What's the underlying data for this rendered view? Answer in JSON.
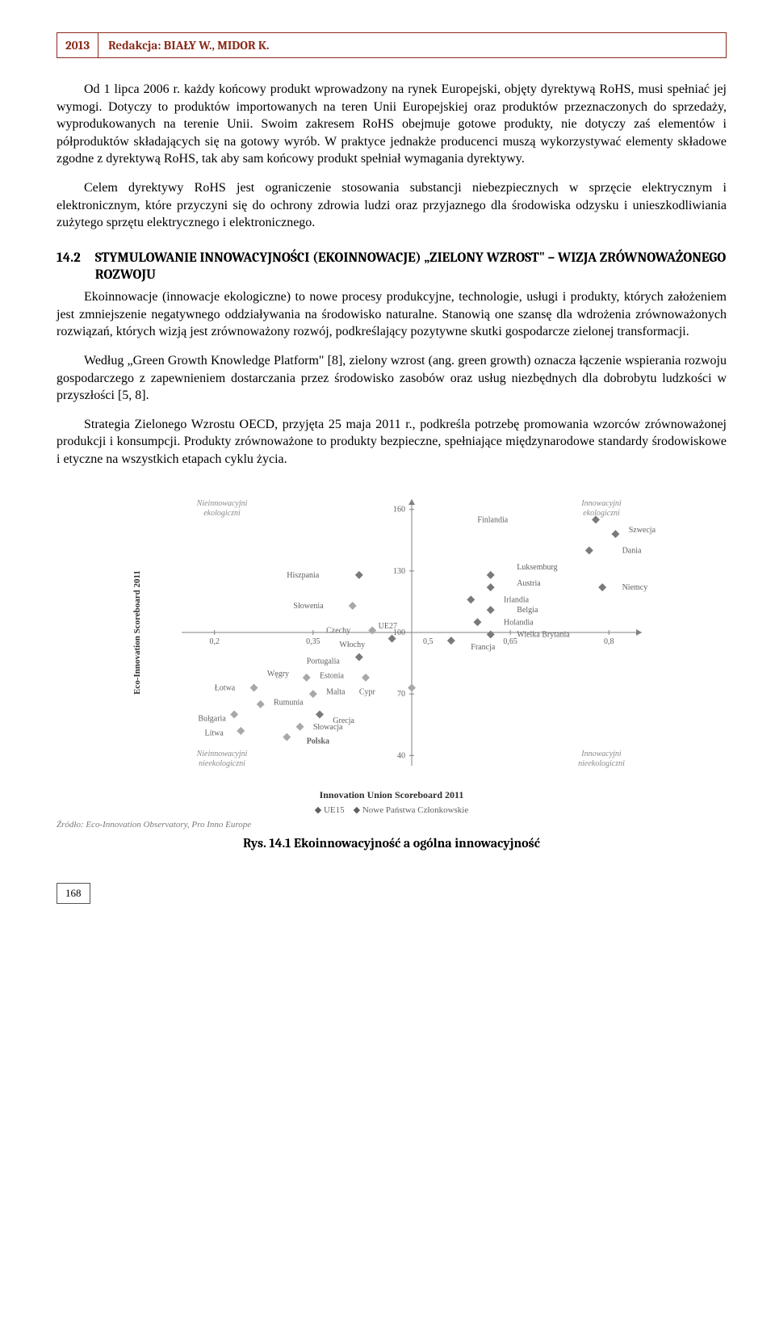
{
  "header": {
    "year": "2013",
    "authors": "Redakcja: BIAŁY W., MIDOR K."
  },
  "paragraphs": {
    "p1": "Od 1 lipca 2006 r. każdy końcowy produkt wprowadzony na rynek Europejski, objęty dyrektywą RoHS, musi spełniać jej wymogi. Dotyczy to produktów importowanych na teren Unii Europejskiej oraz produktów przeznaczonych do sprzedaży, wyprodukowanych na terenie Unii. Swoim zakresem RoHS obejmuje gotowe produkty, nie dotyczy zaś elementów i półproduktów składających się na gotowy wyrób. W praktyce jednakże producenci muszą wykorzystywać elementy składowe zgodne z dyrektywą RoHS, tak aby sam końcowy produkt spełniał wymagania dyrektywy.",
    "p2": "Celem dyrektywy RoHS jest ograniczenie stosowania substancji niebezpiecznych w sprzęcie elektrycznym i elektronicznym, które przyczyni się do ochrony zdrowia ludzi oraz przyjaznego dla środowiska odzysku i unieszkodliwiania zużytego sprzętu elektrycznego i elektronicznego.",
    "p3": "Ekoinnowacje (innowacje ekologiczne) to nowe procesy produkcyjne, technologie, usługi i produkty, których założeniem jest zmniejszenie negatywnego oddziaływania na środowisko naturalne. Stanowią one szansę dla wdrożenia zrównoważonych rozwiązań, których wizją jest zrównoważony rozwój, podkreślający pozytywne skutki gospodarcze zielonej transformacji.",
    "p4": "Według „Green Growth Knowledge Platform\" [8], zielony wzrost (ang. green growth) oznacza łączenie wspierania rozwoju gospodarczego z zapewnieniem dostarczania przez środowisko zasobów oraz usług niezbędnych dla dobrobytu ludzkości w przyszłości [5, 8].",
    "p5": "Strategia Zielonego Wzrostu OECD, przyjęta 25 maja 2011 r., podkreśla potrzebę promowania wzorców zrównoważonej produkcji i konsumpcji. Produkty zrównoważone to produkty bezpieczne, spełniające międzynarodowe standardy środowiskowe i etyczne na wszystkich etapach cyklu życia."
  },
  "section": {
    "num": "14.2",
    "title": "STYMULOWANIE INNOWACYJNOŚCI (EKOINNOWACJE) „ZIELONY WZROST\" – WIZJA ZRÓWNOWAŻONEGO ROZWOJU"
  },
  "figure": {
    "caption": "Rys. 14.1 Ekoinnowacyjność a ogólna innowacyjność",
    "source": "Źródło: Eco-Innovation Observatory, Pro Inno Europe",
    "x_axis_title": "Innovation Union Scoreboard 2011",
    "y_axis_title": "Eco-Innovation Scoreboard 2011",
    "legend": {
      "a": "UE15",
      "b": "Nowe Państwa Członkowskie"
    },
    "quadrants": {
      "tl": "Nieinnowacyjni ekologiczni",
      "tr": "Innowacyjni ekologiczni",
      "bl": "Nieinnowacyjni nieekologiczni",
      "br": "Innowacyjni nieekologiczni"
    },
    "center_label": "UE27",
    "x_ticks": [
      "0,2",
      "0,35",
      "0,5",
      "0,65",
      "0,8"
    ],
    "y_ticks": [
      "40",
      "70",
      "100",
      "130",
      "160"
    ],
    "xlim": [
      0.15,
      0.85
    ],
    "ylim": [
      35,
      165
    ],
    "axis_cross": {
      "x": 0.5,
      "y": 100
    },
    "colors": {
      "axis": "#808080",
      "marker_ue15": "#7a7a7a",
      "marker_new": "#a8a8a8",
      "text": "#606060",
      "quad_text": "#8a8a8a",
      "bg": "#ffffff"
    },
    "marker_size": 5,
    "font_size_label": 10,
    "points_ue15": [
      {
        "x": 0.78,
        "y": 155,
        "label": "Finlandia",
        "lx": 0.6,
        "ly": 155
      },
      {
        "x": 0.81,
        "y": 148,
        "label": "Szwecja",
        "lx": 0.83,
        "ly": 150
      },
      {
        "x": 0.77,
        "y": 140,
        "label": "Dania",
        "lx": 0.82,
        "ly": 140
      },
      {
        "x": 0.42,
        "y": 128,
        "label": "Hiszpania",
        "lx": 0.31,
        "ly": 128
      },
      {
        "x": 0.62,
        "y": 128,
        "label": "Luksemburg",
        "lx": 0.66,
        "ly": 132
      },
      {
        "x": 0.62,
        "y": 122,
        "label": "Austria",
        "lx": 0.66,
        "ly": 124
      },
      {
        "x": 0.79,
        "y": 122,
        "label": "Niemcy",
        "lx": 0.82,
        "ly": 122
      },
      {
        "x": 0.59,
        "y": 116,
        "label": "Irlandia",
        "lx": 0.64,
        "ly": 116
      },
      {
        "x": 0.62,
        "y": 111,
        "label": "Belgia",
        "lx": 0.66,
        "ly": 111
      },
      {
        "x": 0.6,
        "y": 105,
        "label": "Holandia",
        "lx": 0.64,
        "ly": 105
      },
      {
        "x": 0.62,
        "y": 99,
        "label": "Wielka Brytania",
        "lx": 0.66,
        "ly": 99
      },
      {
        "x": 0.56,
        "y": 96,
        "label": "Francja",
        "lx": 0.59,
        "ly": 93
      },
      {
        "x": 0.47,
        "y": 97,
        "label": "Włochy",
        "lx": 0.39,
        "ly": 94
      },
      {
        "x": 0.42,
        "y": 88,
        "label": "Portugalia",
        "lx": 0.34,
        "ly": 86
      },
      {
        "x": 0.36,
        "y": 60,
        "label": "Grecja",
        "lx": 0.38,
        "ly": 57
      }
    ],
    "points_new": [
      {
        "x": 0.41,
        "y": 113,
        "label": "Słowenia",
        "lx": 0.32,
        "ly": 113
      },
      {
        "x": 0.44,
        "y": 101,
        "label": "Czechy",
        "lx": 0.37,
        "ly": 101
      },
      {
        "x": 0.43,
        "y": 78,
        "label": "Estonia",
        "lx": 0.36,
        "ly": 79
      },
      {
        "x": 0.5,
        "y": 73,
        "label": "Cypr",
        "lx": 0.42,
        "ly": 71
      },
      {
        "x": 0.34,
        "y": 78,
        "label": "Węgry",
        "lx": 0.28,
        "ly": 80
      },
      {
        "x": 0.26,
        "y": 73,
        "label": "Łotwa",
        "lx": 0.2,
        "ly": 73
      },
      {
        "x": 0.35,
        "y": 70,
        "label": "Malta",
        "lx": 0.37,
        "ly": 71
      },
      {
        "x": 0.27,
        "y": 65,
        "label": "Rumunia",
        "lx": 0.29,
        "ly": 66
      },
      {
        "x": 0.23,
        "y": 60,
        "label": "Bułgaria",
        "lx": 0.175,
        "ly": 58
      },
      {
        "x": 0.33,
        "y": 54,
        "label": "Słowacja",
        "lx": 0.35,
        "ly": 54
      },
      {
        "x": 0.24,
        "y": 52,
        "label": "Litwa",
        "lx": 0.185,
        "ly": 51
      },
      {
        "x": 0.31,
        "y": 49,
        "label": "Polska",
        "lx": 0.34,
        "ly": 47,
        "bold": true
      }
    ]
  },
  "page_number": "168"
}
